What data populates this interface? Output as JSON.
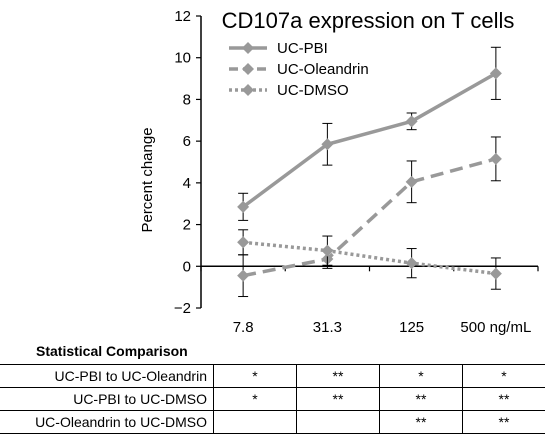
{
  "chart_data": {
    "type": "line",
    "title": "CD107a expression on T cells",
    "xlabel": "",
    "ylabel": "Percent change",
    "categories": [
      "7.8",
      "31.3",
      "125",
      "500 ng/mL"
    ],
    "ylim": [
      -2,
      12
    ],
    "yticks": [
      -2,
      0,
      2,
      4,
      6,
      8,
      10,
      12
    ],
    "ytick_labels": [
      "−2",
      "0",
      "2",
      "4",
      "6",
      "8",
      "10",
      "12"
    ],
    "grid": false,
    "legend_position": "top-left",
    "series": [
      {
        "name": "UC-PBI",
        "style": "solid",
        "color": "#999999",
        "values": [
          2.85,
          5.85,
          6.95,
          9.25
        ],
        "errors": [
          0.65,
          1.0,
          0.4,
          1.25
        ]
      },
      {
        "name": "UC-Oleandrin",
        "style": "dashed",
        "color": "#999999",
        "values": [
          -0.45,
          0.35,
          4.05,
          5.15
        ],
        "errors": [
          1.0,
          0.45,
          1.0,
          1.05
        ]
      },
      {
        "name": "UC-DMSO",
        "style": "dotted",
        "color": "#999999",
        "values": [
          1.15,
          0.75,
          0.15,
          -0.35
        ],
        "errors": [
          0.6,
          0.7,
          0.7,
          0.75
        ]
      }
    ]
  },
  "stats": {
    "title": "Statistical Comparison",
    "rows": [
      {
        "label": "UC-PBI to UC-Oleandrin",
        "cells": [
          "*",
          "**",
          "*",
          "*"
        ]
      },
      {
        "label": "UC-PBI to UC-DMSO",
        "cells": [
          "*",
          "**",
          "**",
          "**"
        ]
      },
      {
        "label": "UC-Oleandrin to UC-DMSO",
        "cells": [
          "",
          "",
          "**",
          "**"
        ]
      }
    ]
  }
}
